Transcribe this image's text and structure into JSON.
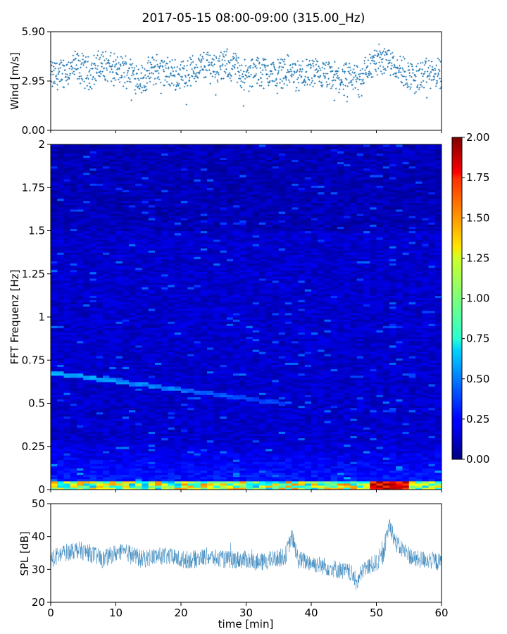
{
  "figure": {
    "title": "2017-05-15 08:00-09:00 (315.00_Hz)"
  },
  "chart_data": [
    {
      "type": "scatter",
      "panel": "wind",
      "title": "",
      "xlabel": "",
      "ylabel": "Wind [m/s]",
      "xlim": [
        0,
        60
      ],
      "ylim": [
        0,
        5.9
      ],
      "yticks": [
        "0.00",
        "2.95",
        "5.90"
      ],
      "color": "#1f77b4",
      "marker": "+",
      "series": [
        {
          "x": [
            0,
            2,
            4,
            6,
            8,
            10,
            12,
            14,
            16,
            18,
            20,
            22,
            24,
            26,
            28,
            30,
            32,
            34,
            36,
            38,
            40,
            42,
            44,
            46,
            48,
            50,
            52,
            54,
            56,
            58,
            60
          ],
          "values": [
            3.2,
            3.5,
            3.8,
            3.4,
            4.0,
            3.5,
            3.6,
            3.0,
            3.7,
            3.4,
            3.3,
            3.6,
            3.9,
            3.8,
            3.9,
            3.2,
            3.6,
            3.4,
            3.6,
            3.3,
            3.4,
            3.2,
            3.1,
            3.0,
            3.4,
            4.2,
            4.3,
            3.5,
            3.1,
            3.4,
            3.3
          ]
        }
      ]
    },
    {
      "type": "heatmap",
      "panel": "spectrogram",
      "title": "",
      "ylabel": "FFT Frequenz [Hz]",
      "xlim": [
        0,
        60
      ],
      "ylim": [
        0,
        2
      ],
      "yticks": [
        "0",
        "0.25",
        "0.5",
        "0.75",
        "1",
        "1.25",
        "1.5",
        "1.75",
        "2"
      ],
      "colormap": "jet",
      "colorbar": {
        "range": [
          0,
          2
        ],
        "ticks": [
          "0.00",
          "0.25",
          "0.50",
          "0.75",
          "1.00",
          "1.25",
          "1.50",
          "1.75",
          "2.00"
        ]
      },
      "features": {
        "background_level": 0.15,
        "descending_line": {
          "start": [
            0,
            0.68
          ],
          "end": [
            36,
            0.5
          ],
          "level": 0.55
        },
        "low_frequency_band": {
          "max_freq": 0.05,
          "level": 1.4,
          "peak_time": 52,
          "peak_level": 2.0
        }
      }
    },
    {
      "type": "line",
      "panel": "spl",
      "title": "",
      "xlabel": "time [min]",
      "ylabel": "SPL [dB]",
      "xlim": [
        0,
        60
      ],
      "ylim": [
        20,
        50
      ],
      "xticks": [
        "0",
        "10",
        "20",
        "30",
        "40",
        "50",
        "60"
      ],
      "yticks": [
        "20",
        "30",
        "40",
        "50"
      ],
      "color": "#1f77b4",
      "series": [
        {
          "x": [
            0,
            2,
            4,
            6,
            8,
            10,
            12,
            14,
            16,
            18,
            20,
            22,
            24,
            26,
            28,
            30,
            32,
            34,
            36,
            37,
            38,
            40,
            42,
            44,
            46,
            47,
            48,
            50,
            51,
            52,
            53,
            54,
            56,
            58,
            60
          ],
          "values": [
            33,
            35,
            36,
            35,
            33,
            35,
            35,
            33,
            34,
            34,
            33,
            33,
            34,
            33,
            33,
            33,
            32,
            33,
            34,
            40,
            33,
            32,
            31,
            30,
            29,
            26,
            30,
            32,
            34,
            44,
            38,
            36,
            33,
            33,
            32
          ]
        }
      ]
    }
  ]
}
